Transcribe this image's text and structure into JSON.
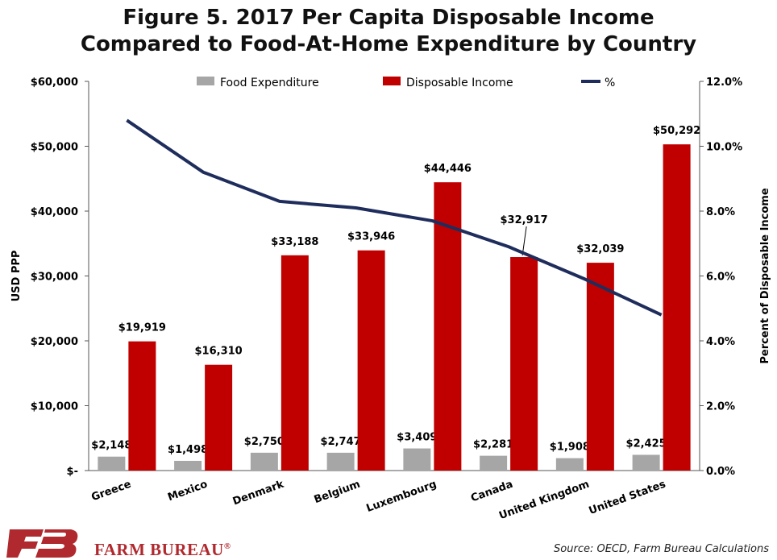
{
  "chart_data": {
    "type": "bar",
    "title_line1": "Figure 5. 2017 Per Capita Disposable Income",
    "title_line2": "Compared to Food-At-Home Expenditure by Country",
    "ylabel": "USD PPP",
    "y2label": "Percent of Disposable Income",
    "ylim": [
      0,
      60000
    ],
    "y2lim": [
      0,
      12
    ],
    "yticks": [
      "$-",
      "$10,000",
      "$20,000",
      "$30,000",
      "$40,000",
      "$50,000",
      "$60,000"
    ],
    "y2ticks": [
      "0.0%",
      "2.0%",
      "4.0%",
      "6.0%",
      "8.0%",
      "10.0%",
      "12.0%"
    ],
    "grid": false,
    "legend_position": "top",
    "categories": [
      "Greece",
      "Mexico",
      "Denmark",
      "Belgium",
      "Luxembourg",
      "Canada",
      "United Kingdom",
      "United States"
    ],
    "series": [
      {
        "name": "Food Expenditure",
        "type": "bar",
        "color": "#a6a6a6",
        "values": [
          2148,
          1498,
          2750,
          2747,
          3409,
          2281,
          1908,
          2425
        ],
        "labels": [
          "$2,148",
          "$1,498",
          "$2,750",
          "$2,747",
          "$3,409",
          "$2,281",
          "$1,908",
          "$2,425"
        ]
      },
      {
        "name": "Disposable Income",
        "type": "bar",
        "color": "#c00000",
        "values": [
          19919,
          16310,
          33188,
          33946,
          44446,
          32917,
          32039,
          50292
        ],
        "labels": [
          "$19,919",
          "$16,310",
          "$33,188",
          "$33,946",
          "$44,446",
          "$32,917",
          "$32,039",
          "$50,292"
        ]
      },
      {
        "name": "%",
        "type": "line",
        "axis": "right",
        "color": "#1f2d5c",
        "values": [
          10.8,
          9.2,
          8.3,
          8.1,
          7.7,
          6.9,
          5.9,
          4.8
        ]
      }
    ]
  },
  "footer": {
    "brand": "FARM BUREAU",
    "brand_mark": "®",
    "source": "Source: OECD, Farm Bureau Calculations"
  }
}
